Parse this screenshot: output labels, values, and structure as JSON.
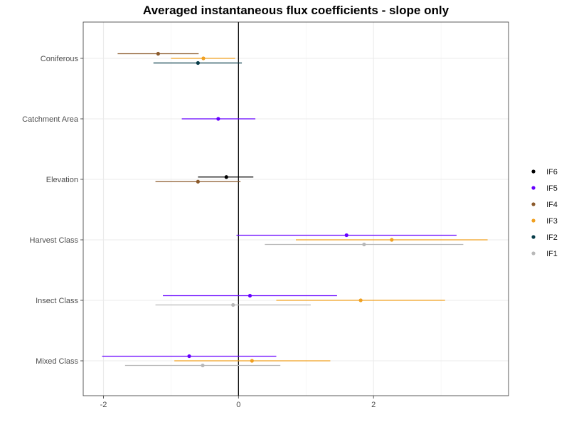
{
  "chart_data": {
    "type": "scatter",
    "title": "Averaged instantaneous flux coefficients - slope only",
    "xlabel": "",
    "ylabel": "",
    "xlim": [
      -2.3,
      4.0
    ],
    "x_ticks": [
      -2,
      0,
      2
    ],
    "x_tick_labels": [
      "-2",
      "0",
      "2"
    ],
    "categories": [
      "Coniferous",
      "Catchment Area",
      "Elevation",
      "Harvest Class",
      "Insect Class",
      "Mixed Class"
    ],
    "grid": true,
    "zero_line": 0,
    "legend_position": "right",
    "legend_order": [
      "IF6",
      "IF5",
      "IF4",
      "IF3",
      "IF2",
      "IF1"
    ],
    "series": [
      {
        "name": "IF6",
        "color": "#000000",
        "points": [
          {
            "category": "Elevation",
            "estimate": -0.18,
            "lower": -0.6,
            "upper": 0.22
          }
        ]
      },
      {
        "name": "IF5",
        "color": "#6600ff",
        "points": [
          {
            "category": "Catchment Area",
            "estimate": -0.3,
            "lower": -0.84,
            "upper": 0.25
          },
          {
            "category": "Harvest Class",
            "estimate": 1.6,
            "lower": -0.03,
            "upper": 3.23
          },
          {
            "category": "Insect Class",
            "estimate": 0.17,
            "lower": -1.12,
            "upper": 1.46
          },
          {
            "category": "Mixed Class",
            "estimate": -0.73,
            "lower": -2.02,
            "upper": 0.56
          }
        ]
      },
      {
        "name": "IF4",
        "color": "#8b5a2b",
        "points": [
          {
            "category": "Coniferous",
            "estimate": -1.19,
            "lower": -1.79,
            "upper": -0.59
          },
          {
            "category": "Elevation",
            "estimate": -0.6,
            "lower": -1.23,
            "upper": 0.03
          }
        ]
      },
      {
        "name": "IF3",
        "color": "#f0a020",
        "points": [
          {
            "category": "Coniferous",
            "estimate": -0.52,
            "lower": -1.0,
            "upper": -0.05
          },
          {
            "category": "Harvest Class",
            "estimate": 2.27,
            "lower": 0.85,
            "upper": 3.69
          },
          {
            "category": "Insect Class",
            "estimate": 1.81,
            "lower": 0.56,
            "upper": 3.06
          },
          {
            "category": "Mixed Class",
            "estimate": 0.2,
            "lower": -0.95,
            "upper": 1.36
          }
        ]
      },
      {
        "name": "IF2",
        "color": "#083d4a",
        "points": [
          {
            "category": "Coniferous",
            "estimate": -0.6,
            "lower": -1.26,
            "upper": 0.05
          }
        ]
      },
      {
        "name": "IF1",
        "color": "#b8b8b8",
        "points": [
          {
            "category": "Harvest Class",
            "estimate": 1.86,
            "lower": 0.39,
            "upper": 3.33
          },
          {
            "category": "Insect Class",
            "estimate": -0.08,
            "lower": -1.23,
            "upper": 1.07
          },
          {
            "category": "Mixed Class",
            "estimate": -0.53,
            "lower": -1.68,
            "upper": 0.62
          }
        ]
      }
    ]
  }
}
